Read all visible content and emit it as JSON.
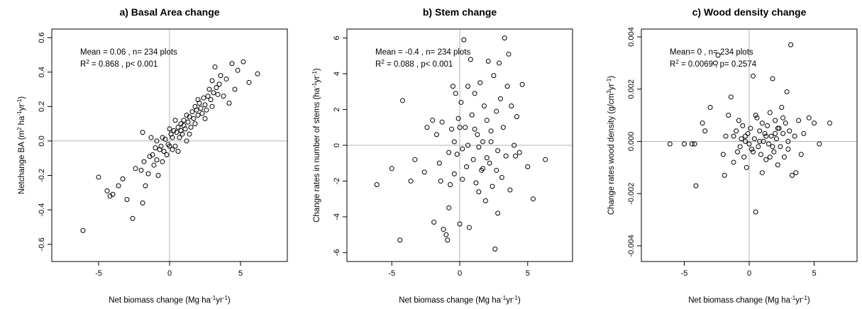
{
  "chart_data": [
    {
      "type": "scatter",
      "title": "a) Basal Area change",
      "xlabel": {
        "main": "Net biomass change (Mg ha",
        "sup1": "-1",
        "mid": "yr",
        "sup2": "-1",
        "end": ")"
      },
      "ylabel": {
        "main": "Netchange BA (m",
        "sup1": "2",
        "mid": " ha",
        "sup2": "-1",
        "mid2": "yr",
        "sup3": "-1",
        "end": ")"
      },
      "xlim": [
        -8.3,
        8.3
      ],
      "ylim": [
        -0.7,
        0.65
      ],
      "xticks": [
        -5,
        0,
        5
      ],
      "yticks": [
        -0.6,
        -0.4,
        -0.2,
        0.0,
        0.2,
        0.4,
        0.6
      ],
      "ytick_labels": [
        "-0.6",
        "-0.4",
        "-0.2",
        "0.0",
        "0.2",
        "0.4",
        "0.6"
      ],
      "annotations": {
        "line1": "Mean = 0.06 , n= 234 plots",
        "line2_pre": "R",
        "line2_sup": "2",
        "line2_post": " = 0.868 , p< 0.001"
      },
      "grid": false,
      "reference_lines": {
        "x": 0,
        "y": 0
      },
      "points": [
        [
          -6.1,
          -0.52
        ],
        [
          -5.0,
          -0.21
        ],
        [
          -4.4,
          -0.29
        ],
        [
          -4.2,
          -0.32
        ],
        [
          -4.0,
          -0.31
        ],
        [
          -3.6,
          -0.26
        ],
        [
          -3.3,
          -0.22
        ],
        [
          -3.0,
          -0.34
        ],
        [
          -2.6,
          -0.45
        ],
        [
          -2.4,
          -0.16
        ],
        [
          -2.0,
          -0.17
        ],
        [
          -1.9,
          -0.36
        ],
        [
          -1.8,
          -0.12
        ],
        [
          -1.7,
          -0.26
        ],
        [
          -1.5,
          -0.19
        ],
        [
          -1.4,
          -0.09
        ],
        [
          -1.2,
          -0.08
        ],
        [
          -1.1,
          -0.14
        ],
        [
          -1.0,
          -0.04
        ],
        [
          -0.9,
          -0.11
        ],
        [
          -0.8,
          -0.2
        ],
        [
          -0.7,
          -0.05
        ],
        [
          -0.6,
          -0.03
        ],
        [
          -0.5,
          -0.12
        ],
        [
          -0.4,
          -0.06
        ],
        [
          -0.3,
          0.01
        ],
        [
          -0.2,
          -0.08
        ],
        [
          -0.1,
          -0.02
        ],
        [
          0.0,
          -0.03
        ],
        [
          0.1,
          0.04
        ],
        [
          0.2,
          -0.05
        ],
        [
          0.2,
          0.02
        ],
        [
          0.3,
          0.06
        ],
        [
          0.4,
          -0.03
        ],
        [
          0.5,
          0.05
        ],
        [
          0.6,
          0.08
        ],
        [
          0.7,
          0.02
        ],
        [
          0.8,
          0.1
        ],
        [
          0.8,
          0.06
        ],
        [
          0.9,
          0.04
        ],
        [
          1.0,
          0.12
        ],
        [
          1.0,
          0.09
        ],
        [
          1.1,
          0.07
        ],
        [
          1.2,
          0.15
        ],
        [
          1.3,
          0.11
        ],
        [
          1.4,
          0.14
        ],
        [
          1.5,
          0.08
        ],
        [
          1.6,
          0.17
        ],
        [
          1.7,
          0.13
        ],
        [
          1.8,
          0.2
        ],
        [
          1.8,
          0.1
        ],
        [
          1.9,
          0.18
        ],
        [
          2.0,
          0.15
        ],
        [
          2.1,
          0.22
        ],
        [
          2.2,
          0.19
        ],
        [
          2.3,
          0.16
        ],
        [
          2.4,
          0.25
        ],
        [
          2.5,
          0.21
        ],
        [
          2.6,
          0.18
        ],
        [
          2.7,
          0.26
        ],
        [
          2.8,
          0.3
        ],
        [
          2.9,
          0.24
        ],
        [
          3.0,
          0.35
        ],
        [
          3.1,
          0.28
        ],
        [
          3.2,
          0.43
        ],
        [
          3.3,
          0.31
        ],
        [
          3.4,
          0.27
        ],
        [
          3.5,
          0.33
        ],
        [
          3.6,
          0.38
        ],
        [
          3.8,
          0.26
        ],
        [
          4.0,
          0.36
        ],
        [
          4.2,
          0.22
        ],
        [
          4.4,
          0.45
        ],
        [
          4.6,
          0.3
        ],
        [
          4.8,
          0.41
        ],
        [
          5.2,
          0.46
        ],
        [
          5.6,
          0.34
        ],
        [
          6.2,
          0.39
        ],
        [
          -1.9,
          0.05
        ],
        [
          -1.3,
          0.02
        ],
        [
          -0.9,
          0.0
        ],
        [
          0.4,
          0.12
        ],
        [
          0.6,
          -0.06
        ],
        [
          1.4,
          0.04
        ],
        [
          2.0,
          0.24
        ],
        [
          2.5,
          0.13
        ],
        [
          3.0,
          0.2
        ],
        [
          0.0,
          0.07
        ],
        [
          -0.5,
          0.02
        ],
        [
          1.2,
          0.0
        ]
      ]
    },
    {
      "type": "scatter",
      "title": "b) Stem change",
      "xlabel": {
        "main": "Net biomass change (Mg ha",
        "sup1": "-1",
        "mid": "yr",
        "sup2": "-1",
        "end": ")"
      },
      "ylabel": {
        "main": "Change rates in number of stems (ha",
        "sup1": "-1",
        "mid": "yr",
        "sup2": "-1",
        "end": ")"
      },
      "xlim": [
        -8.3,
        8.3
      ],
      "ylim": [
        -6.5,
        6.5
      ],
      "xticks": [
        -5,
        0,
        5
      ],
      "yticks": [
        -6,
        -4,
        -2,
        0,
        2,
        4,
        6
      ],
      "ytick_labels": [
        "-6",
        "-4",
        "-2",
        "0",
        "2",
        "4",
        "6"
      ],
      "annotations": {
        "line1": "Mean = -0.4 , n= 234 plots",
        "line2_pre": "R",
        "line2_sup": "2",
        "line2_post": " = 0.088 , p< 0.001"
      },
      "grid": false,
      "reference_lines": {
        "x": 0,
        "y": 0
      },
      "points": [
        [
          -6.1,
          -2.2
        ],
        [
          -5.0,
          -1.3
        ],
        [
          -4.4,
          -5.3
        ],
        [
          -4.2,
          2.5
        ],
        [
          -3.6,
          -2.0
        ],
        [
          -3.3,
          -0.8
        ],
        [
          -2.6,
          -1.5
        ],
        [
          -2.4,
          1.0
        ],
        [
          -2.0,
          1.4
        ],
        [
          -1.9,
          -4.3
        ],
        [
          -1.7,
          0.6
        ],
        [
          -1.5,
          -1.0
        ],
        [
          -1.4,
          -2.0
        ],
        [
          -1.3,
          1.3
        ],
        [
          -1.2,
          -4.7
        ],
        [
          -1.0,
          -5.0
        ],
        [
          -0.9,
          -5.3
        ],
        [
          -0.8,
          -3.5
        ],
        [
          -0.7,
          -2.2
        ],
        [
          -0.6,
          0.9
        ],
        [
          -0.5,
          3.3
        ],
        [
          -0.4,
          -1.6
        ],
        [
          -0.3,
          2.9
        ],
        [
          -0.2,
          -0.5
        ],
        [
          -0.1,
          1.5
        ],
        [
          0.0,
          -4.4
        ],
        [
          0.1,
          2.4
        ],
        [
          0.2,
          -1.9
        ],
        [
          0.3,
          5.9
        ],
        [
          0.4,
          1.0
        ],
        [
          0.5,
          -1.2
        ],
        [
          0.6,
          3.3
        ],
        [
          0.7,
          -4.6
        ],
        [
          0.8,
          4.8
        ],
        [
          0.9,
          1.7
        ],
        [
          1.0,
          -0.8
        ],
        [
          1.1,
          2.9
        ],
        [
          1.2,
          -2.1
        ],
        [
          1.3,
          0.6
        ],
        [
          1.4,
          -2.6
        ],
        [
          1.5,
          3.5
        ],
        [
          1.6,
          -1.4
        ],
        [
          1.7,
          0.2
        ],
        [
          1.8,
          2.2
        ],
        [
          1.9,
          -3.1
        ],
        [
          2.0,
          1.4
        ],
        [
          2.1,
          4.7
        ],
        [
          2.2,
          -1.0
        ],
        [
          2.3,
          0.8
        ],
        [
          2.4,
          -2.3
        ],
        [
          2.5,
          3.9
        ],
        [
          2.6,
          -5.8
        ],
        [
          2.7,
          1.9
        ],
        [
          2.8,
          -0.3
        ],
        [
          2.9,
          4.6
        ],
        [
          3.0,
          2.6
        ],
        [
          3.1,
          -1.8
        ],
        [
          3.2,
          1.0
        ],
        [
          3.3,
          6.0
        ],
        [
          3.4,
          -0.6
        ],
        [
          3.5,
          3.3
        ],
        [
          3.6,
          5.1
        ],
        [
          3.7,
          -2.5
        ],
        [
          3.8,
          2.2
        ],
        [
          4.0,
          0.0
        ],
        [
          4.1,
          -0.6
        ],
        [
          4.2,
          1.6
        ],
        [
          4.4,
          -0.4
        ],
        [
          4.6,
          3.4
        ],
        [
          5.0,
          -1.2
        ],
        [
          5.4,
          -3.0
        ],
        [
          6.3,
          -0.8
        ],
        [
          -0.4,
          0.2
        ],
        [
          0.2,
          -0.2
        ],
        [
          0.6,
          0.0
        ],
        [
          1.1,
          0.9
        ],
        [
          1.4,
          -0.1
        ],
        [
          2.0,
          -0.7
        ],
        [
          2.3,
          0.2
        ],
        [
          2.8,
          -3.8
        ],
        [
          -0.8,
          -0.4
        ],
        [
          0.0,
          1.0
        ],
        [
          1.7,
          -1.3
        ],
        [
          2.7,
          -1.4
        ]
      ]
    },
    {
      "type": "scatter",
      "title": "c) Wood density change",
      "xlabel": {
        "main": "Net biomass change (Mg ha",
        "sup1": "-1",
        "mid": "yr",
        "sup2": "-1",
        "end": ")"
      },
      "ylabel": {
        "main": "Change rates wood density (g/cm",
        "sup1": "3",
        "mid": "yr",
        "sup2": "-1",
        "end": ")"
      },
      "xlim": [
        -8.3,
        8.3
      ],
      "ylim": [
        -0.0046,
        0.0043
      ],
      "xticks": [
        -5,
        0,
        5
      ],
      "yticks": [
        -0.004,
        -0.002,
        0.0,
        0.002,
        0.004
      ],
      "ytick_labels": [
        "-0.004",
        "-0.002",
        "0.000",
        "0.002",
        "0.004"
      ],
      "annotations": {
        "line1": "Mean= 0 , n= 234 plots",
        "line2_pre": "R",
        "line2_sup": "2",
        "line2_post": " = 0.0069 , p= 0.2574"
      },
      "grid": false,
      "reference_lines": {
        "x": 0,
        "y": 0
      },
      "points": [
        [
          -6.1,
          -0.0001
        ],
        [
          -5.0,
          -0.0001
        ],
        [
          -4.4,
          -0.0001
        ],
        [
          -4.2,
          -0.0001
        ],
        [
          -4.1,
          -0.0017
        ],
        [
          -3.6,
          0.0007
        ],
        [
          -3.4,
          0.0004
        ],
        [
          -3.0,
          0.0013
        ],
        [
          -2.6,
          0.003
        ],
        [
          -2.4,
          0.0033
        ],
        [
          -2.0,
          -0.0005
        ],
        [
          -1.9,
          -0.0013
        ],
        [
          -1.8,
          0.0002
        ],
        [
          -1.6,
          0.001
        ],
        [
          -1.4,
          0.0017
        ],
        [
          -1.2,
          -0.0008
        ],
        [
          -1.0,
          0.0004
        ],
        [
          -0.9,
          -0.0004
        ],
        [
          -0.8,
          0.0008
        ],
        [
          -0.7,
          -0.0002
        ],
        [
          -0.6,
          0.0001
        ],
        [
          -0.5,
          0.0006
        ],
        [
          -0.4,
          -0.0006
        ],
        [
          -0.3,
          0.0002
        ],
        [
          -0.2,
          -0.001
        ],
        [
          -0.1,
          0.0003
        ],
        [
          0.0,
          -0.0001
        ],
        [
          0.1,
          0.0005
        ],
        [
          0.2,
          -0.0003
        ],
        [
          0.3,
          0.0025
        ],
        [
          0.4,
          0.0001
        ],
        [
          0.5,
          -0.0027
        ],
        [
          0.6,
          0.0009
        ],
        [
          0.7,
          -0.0002
        ],
        [
          0.8,
          0.0004
        ],
        [
          0.9,
          -0.0005
        ],
        [
          1.0,
          0.0007
        ],
        [
          1.1,
          0.0
        ],
        [
          1.2,
          0.0003
        ],
        [
          1.3,
          -0.0007
        ],
        [
          1.4,
          0.0006
        ],
        [
          1.5,
          -0.0001
        ],
        [
          1.6,
          0.0011
        ],
        [
          1.7,
          0.0002
        ],
        [
          1.8,
          0.0024
        ],
        [
          1.9,
          -0.0004
        ],
        [
          2.0,
          0.0008
        ],
        [
          2.1,
          0.0001
        ],
        [
          2.2,
          -0.0009
        ],
        [
          2.3,
          0.0005
        ],
        [
          2.4,
          -0.0002
        ],
        [
          2.5,
          0.0013
        ],
        [
          2.6,
          0.0003
        ],
        [
          2.7,
          -0.0006
        ],
        [
          2.8,
          0.0007
        ],
        [
          2.9,
          0.0019
        ],
        [
          3.0,
          -0.0003
        ],
        [
          3.1,
          0.0004
        ],
        [
          3.2,
          0.0037
        ],
        [
          3.3,
          -0.0013
        ],
        [
          3.5,
          0.0002
        ],
        [
          3.6,
          -0.0012
        ],
        [
          3.8,
          0.0008
        ],
        [
          4.0,
          -0.0005
        ],
        [
          4.2,
          0.0003
        ],
        [
          4.6,
          0.0009
        ],
        [
          5.0,
          0.0007
        ],
        [
          5.4,
          -0.0001
        ],
        [
          6.2,
          0.0007
        ],
        [
          -0.3,
          0.0
        ],
        [
          0.3,
          -0.0004
        ],
        [
          0.8,
          0.0
        ],
        [
          1.3,
          0.0002
        ],
        [
          1.8,
          -0.0002
        ],
        [
          2.2,
          0.0005
        ],
        [
          2.6,
          0.0009
        ],
        [
          3.0,
          0.0
        ],
        [
          1.0,
          -0.0012
        ],
        [
          -1.2,
          0.0002
        ],
        [
          0.5,
          0.001
        ],
        [
          1.6,
          -0.0006
        ],
        [
          2.0,
          0.0003
        ]
      ]
    }
  ]
}
